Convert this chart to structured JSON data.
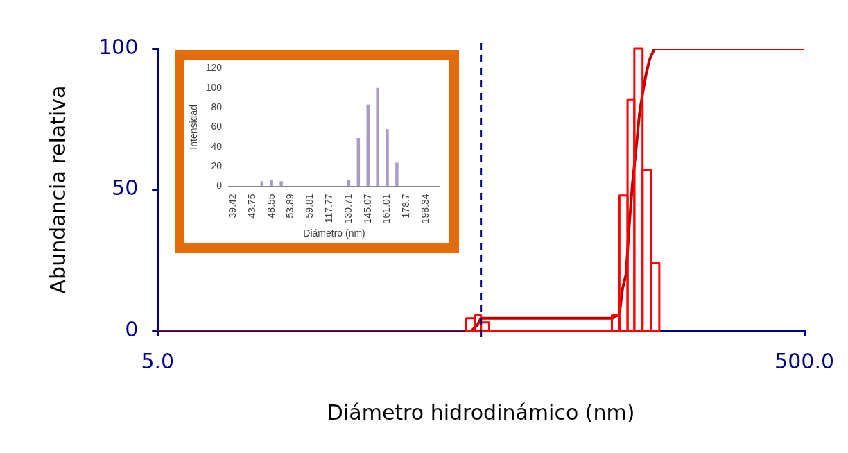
{
  "chart_data": [
    {
      "type": "histogram",
      "xlabel": "Diámetro hidrodinámico (nm)",
      "ylabel": "Abundancia relativa",
      "log": "x",
      "xlim": [
        5,
        500
      ],
      "xticks": [
        {
          "value": 5,
          "label": "5.0"
        },
        {
          "value": 500,
          "label": "500.0"
        }
      ],
      "ylim": [
        0,
        100
      ],
      "yticks": [
        0,
        50,
        100
      ],
      "grid": false,
      "legend": false,
      "series": [
        {
          "type": "histogram",
          "color": "#ff0000",
          "bins": [
            45,
            48,
            50,
            53,
            127,
            134,
            142,
            149,
            158,
            168,
            178
          ],
          "values": [
            4.5,
            5.5,
            3,
            0,
            5.5,
            48,
            82,
            100,
            57,
            24
          ]
        },
        {
          "type": "line",
          "color": "#c00000",
          "x": [
            5,
            46.7,
            48.7,
            50,
            127.6,
            134,
            137,
            140.5,
            143.8,
            147,
            151,
            154.6,
            158,
            162,
            166,
            172,
            500
          ],
          "values": [
            0,
            0,
            2,
            4.5,
            4.5,
            6,
            15,
            20,
            38,
            52,
            65,
            77,
            84,
            91,
            96,
            100,
            100
          ]
        }
      ],
      "ref_lines": [
        {
          "axis": "x",
          "value": 50,
          "color": "#000080",
          "line_style": "dashed"
        }
      ]
    },
    {
      "type": "bar",
      "xlabel": "Diámetro (nm)",
      "ylabel": "Intensidad",
      "categories": [
        "39.42",
        null,
        "43.75",
        null,
        "48.55",
        null,
        "53.89",
        null,
        "59.81",
        null,
        "117.77",
        null,
        "130.71",
        null,
        "145.07",
        null,
        "161.01",
        null,
        "178.7",
        null,
        "198.34",
        null
      ],
      "values": [
        0,
        0,
        0,
        5,
        6,
        5,
        0,
        0,
        0,
        0,
        0,
        0,
        6,
        49,
        83,
        100,
        58,
        24,
        0,
        0,
        0,
        0
      ],
      "color": "#a99bc2",
      "ylim": [
        0,
        120
      ],
      "yticks": [
        0,
        20,
        40,
        60,
        80,
        100,
        120
      ],
      "grid": false,
      "legend": false
    }
  ]
}
